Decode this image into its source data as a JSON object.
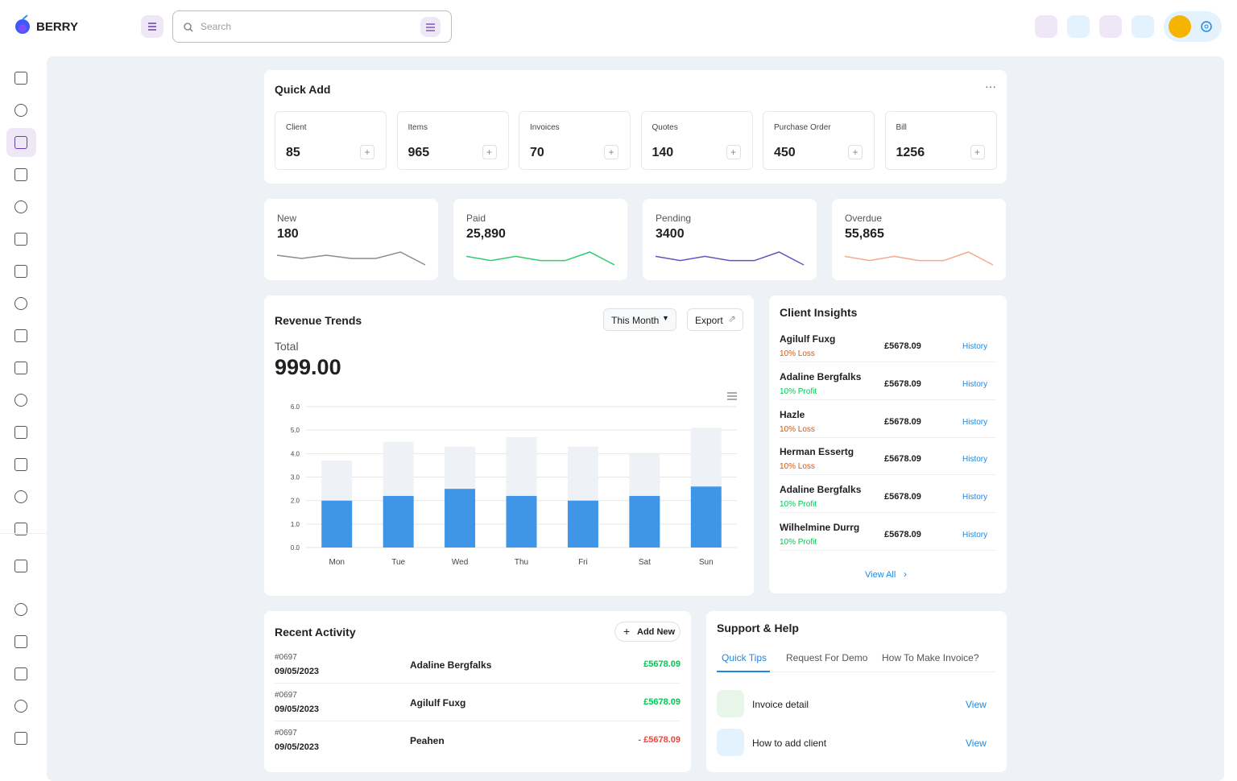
{
  "header": {
    "brand": "BERRY",
    "search_placeholder": "Search"
  },
  "quick_add": {
    "title": "Quick Add",
    "items": [
      {
        "label": "Client",
        "value": 85
      },
      {
        "label": "Items",
        "value": 965
      },
      {
        "label": "Invoices",
        "value": 70
      },
      {
        "label": "Quotes",
        "value": 140
      },
      {
        "label": "Purchase Order",
        "value": 450
      },
      {
        "label": "Bill",
        "value": 1256
      }
    ]
  },
  "stats": [
    {
      "label": "New",
      "value": 180,
      "color": "#8c8c8c",
      "trend": [
        4,
        3,
        4,
        3,
        3,
        5,
        1
      ]
    },
    {
      "label": "Paid",
      "value": "25,890",
      "color": "#2ecc71",
      "trend": [
        3,
        2,
        3,
        2,
        2,
        4,
        1
      ]
    },
    {
      "label": "Pending",
      "value": 3400,
      "color": "#6a4fc3",
      "trend": [
        3,
        2,
        3,
        2,
        2,
        4,
        1
      ]
    },
    {
      "label": "Overdue",
      "value": "55,865",
      "color": "#f5a98f",
      "trend": [
        3,
        2,
        3,
        2,
        2,
        4,
        1
      ]
    }
  ],
  "revenue": {
    "total_label": "Total",
    "total": "999.00",
    "period": "This Month",
    "export": "Export"
  },
  "chart_data": {
    "type": "bar",
    "stacked": true,
    "title": "Revenue Trends",
    "categories": [
      "Mon",
      "Tue",
      "Wed",
      "Thu",
      "Fri",
      "Sat",
      "Sun"
    ],
    "series": [
      {
        "color": "#3f95e6",
        "values": [
          2.0,
          2.2,
          2.5,
          2.2,
          2.0,
          2.2,
          2.6
        ]
      },
      {
        "color": "#eef1f5",
        "values": [
          1.7,
          2.3,
          1.8,
          2.5,
          2.3,
          1.8,
          2.5
        ]
      }
    ],
    "ylim": [
      0,
      6
    ],
    "yticks": [
      {
        "value": 0,
        "label": "0.0"
      },
      {
        "value": 1,
        "label": "1.0"
      },
      {
        "value": 2,
        "label": "2.0"
      },
      {
        "value": 3,
        "label": "3.0"
      },
      {
        "value": 4,
        "label": "4.0"
      },
      {
        "value": 5,
        "label": "5.0"
      },
      {
        "value": 6,
        "label": "6.0"
      }
    ],
    "grid": true
  },
  "client_insights": {
    "title": "Client Insights",
    "rows": [
      {
        "name": "Agilulf Fuxg",
        "change": "10% Loss",
        "color": "#e65100",
        "amount": "£5678.09",
        "action": "History"
      },
      {
        "name": "Adaline Bergfalks",
        "change": "10% Profit",
        "color": "#00c853",
        "amount": "£5678.09",
        "action": "History"
      },
      {
        "name": "Hazle",
        "change": "10% Loss",
        "color": "#e65100",
        "amount": "£5678.09",
        "action": "History"
      },
      {
        "name": "Herman Essertg",
        "change": "10% Loss",
        "color": "#e65100",
        "amount": "£5678.09",
        "action": "History"
      },
      {
        "name": "Adaline Bergfalks",
        "change": "10% Profit",
        "color": "#00c853",
        "amount": "£5678.09",
        "action": "History"
      },
      {
        "name": "Wilhelmine Durrg",
        "change": "10% Profit",
        "color": "#00c853",
        "amount": "£5678.09",
        "action": "History"
      }
    ],
    "view_all": "View All"
  },
  "recent_activity": {
    "title": "Recent Activity",
    "add_new": "Add New",
    "rows": [
      {
        "id": "#0697",
        "date": "09/05/2023",
        "name": "Adaline Bergfalks",
        "amount": "£5678.09",
        "color": "#00c853"
      },
      {
        "id": "#0697",
        "date": "09/05/2023",
        "name": "Agilulf Fuxg",
        "amount": "£5678.09",
        "color": "#00c853"
      },
      {
        "id": "#0697",
        "date": "09/05/2023",
        "name": "Peahen",
        "amount": "- £5678.09",
        "color": "#f44336"
      }
    ]
  },
  "support": {
    "title": "Support & Help",
    "tabs": [
      "Quick Tips",
      "Request For Demo",
      "How To Make Invoice?"
    ],
    "items": [
      {
        "label": "Invoice detail",
        "action": "View"
      },
      {
        "label": "How to add client",
        "action": "View"
      }
    ]
  }
}
